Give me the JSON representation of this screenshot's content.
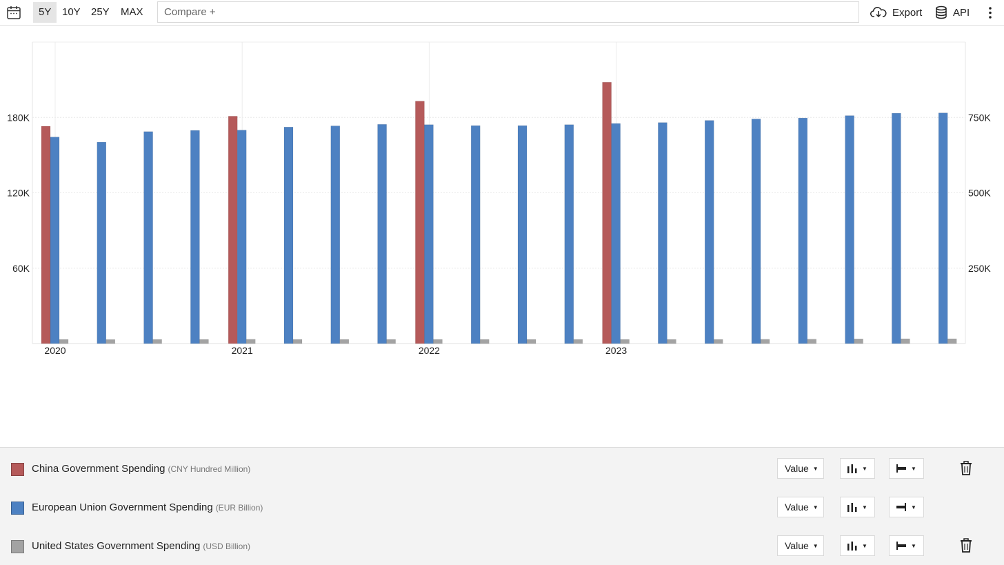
{
  "toolbar": {
    "ranges": [
      "5Y",
      "10Y",
      "25Y",
      "MAX"
    ],
    "active_range": "5Y",
    "compare_placeholder": "Compare +",
    "export_label": "Export",
    "api_label": "API",
    "icons": [
      "calendar-icon",
      "cloud-download-icon",
      "database-icon",
      "more-vertical-icon"
    ]
  },
  "colors": {
    "china": "#b55a5a",
    "eu": "#4d81c2",
    "us": "#a3a3a3"
  },
  "chart_data": {
    "type": "bar",
    "x_ticks": [
      "2020",
      "2021",
      "2022",
      "2023"
    ],
    "left_axis": {
      "ticks": [
        "60K",
        "120K",
        "180K"
      ],
      "values": [
        60000,
        120000,
        180000
      ],
      "range": [
        0,
        240000
      ]
    },
    "right_axis": {
      "ticks": [
        "250K",
        "500K",
        "750K"
      ],
      "values": [
        250000,
        500000,
        750000
      ],
      "range": [
        0,
        1000000
      ]
    },
    "grid": true,
    "categories": [
      "2020-Q1",
      "2020-Q2",
      "2020-Q3",
      "2020-Q4",
      "2021-Q1",
      "2021-Q2",
      "2021-Q3",
      "2021-Q4",
      "2022-Q1",
      "2022-Q2",
      "2022-Q3",
      "2022-Q4",
      "2023-Q1",
      "2023-Q2",
      "2023-Q3",
      "2023-Q4",
      "2024-Q1",
      "2024-Q2",
      "2024-Q3",
      "2024-Q4"
    ],
    "series": [
      {
        "name": "China Government Spending",
        "axis": "left",
        "values": [
          173000,
          null,
          null,
          null,
          181000,
          null,
          null,
          null,
          193000,
          null,
          null,
          null,
          208000,
          null,
          null,
          null,
          null,
          null,
          null,
          null
        ]
      },
      {
        "name": "European Union Government Spending",
        "axis": "right",
        "values": [
          685000,
          668000,
          703000,
          707000,
          708000,
          718000,
          722000,
          727000,
          726000,
          723000,
          723000,
          726000,
          730000,
          733000,
          740000,
          745000,
          748000,
          756000,
          764000,
          765000
        ]
      },
      {
        "name": "United States Government Spending",
        "axis": "left",
        "values": [
          3300,
          3200,
          3300,
          3300,
          3400,
          3300,
          3300,
          3300,
          3300,
          3300,
          3300,
          3300,
          3300,
          3300,
          3300,
          3400,
          3500,
          3700,
          3800,
          3800
        ]
      }
    ]
  },
  "legend": [
    {
      "name": "China Government Spending",
      "unit": "(CNY Hundred Million)",
      "value_label": "Value",
      "axis_side": "left",
      "has_delete": true
    },
    {
      "name": "European Union Government Spending",
      "unit": "(EUR Billion)",
      "value_label": "Value",
      "axis_side": "right",
      "has_delete": false
    },
    {
      "name": "United States Government Spending",
      "unit": "(USD Billion)",
      "value_label": "Value",
      "axis_side": "left",
      "has_delete": true
    }
  ]
}
